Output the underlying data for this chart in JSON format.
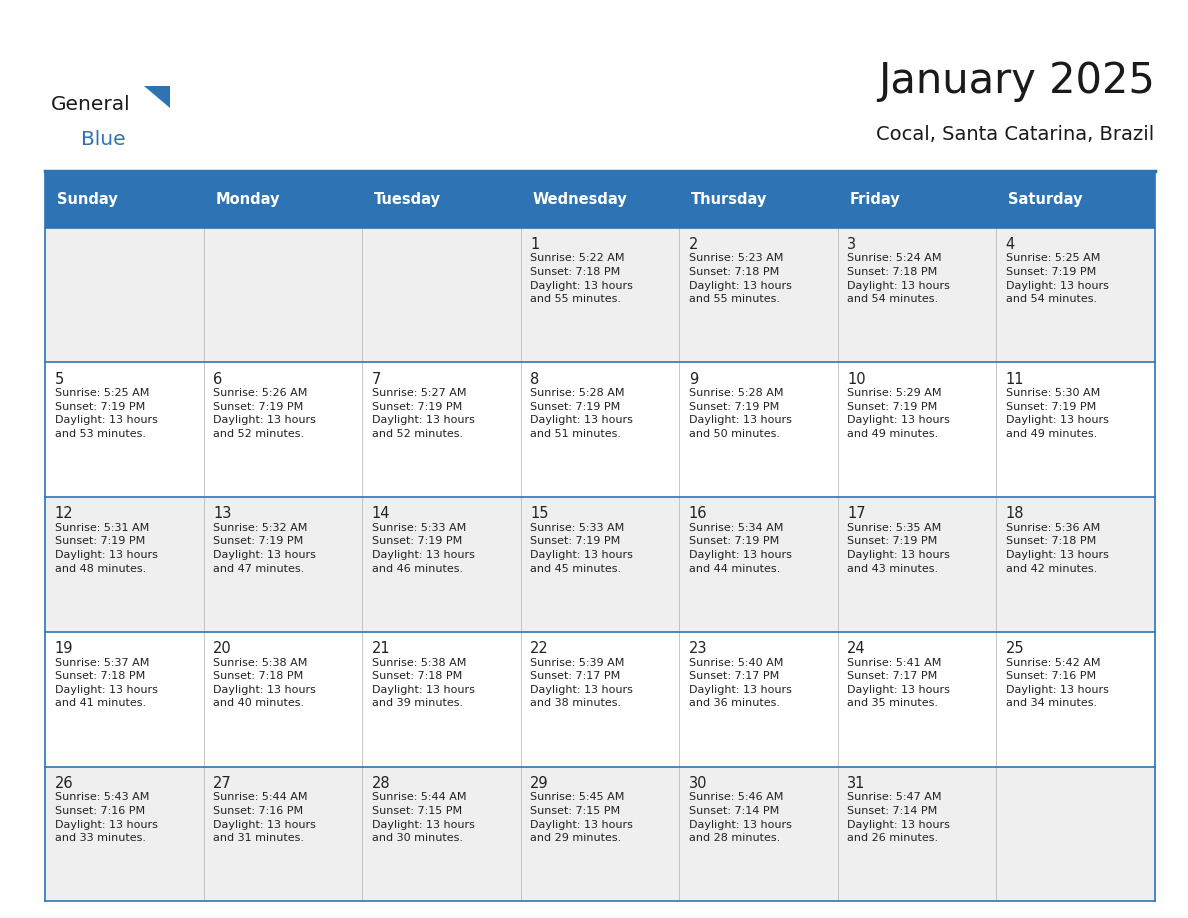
{
  "title": "January 2025",
  "subtitle": "Cocal, Santa Catarina, Brazil",
  "days_of_week": [
    "Sunday",
    "Monday",
    "Tuesday",
    "Wednesday",
    "Thursday",
    "Friday",
    "Saturday"
  ],
  "header_bg": "#2E74B5",
  "header_text_color": "#FFFFFF",
  "row_bg_even": "#EFEFEF",
  "row_bg_odd": "#FFFFFF",
  "cell_text_color": "#222222",
  "day_num_color": "#222222",
  "border_color": "#2E74B5",
  "grid_color": "#BBBBBB",
  "calendar_data": [
    [
      null,
      null,
      null,
      {
        "day": 1,
        "sunrise": "5:22 AM",
        "sunset": "7:18 PM",
        "daylight_hours": 13,
        "daylight_minutes": 55
      },
      {
        "day": 2,
        "sunrise": "5:23 AM",
        "sunset": "7:18 PM",
        "daylight_hours": 13,
        "daylight_minutes": 55
      },
      {
        "day": 3,
        "sunrise": "5:24 AM",
        "sunset": "7:18 PM",
        "daylight_hours": 13,
        "daylight_minutes": 54
      },
      {
        "day": 4,
        "sunrise": "5:25 AM",
        "sunset": "7:19 PM",
        "daylight_hours": 13,
        "daylight_minutes": 54
      }
    ],
    [
      {
        "day": 5,
        "sunrise": "5:25 AM",
        "sunset": "7:19 PM",
        "daylight_hours": 13,
        "daylight_minutes": 53
      },
      {
        "day": 6,
        "sunrise": "5:26 AM",
        "sunset": "7:19 PM",
        "daylight_hours": 13,
        "daylight_minutes": 52
      },
      {
        "day": 7,
        "sunrise": "5:27 AM",
        "sunset": "7:19 PM",
        "daylight_hours": 13,
        "daylight_minutes": 52
      },
      {
        "day": 8,
        "sunrise": "5:28 AM",
        "sunset": "7:19 PM",
        "daylight_hours": 13,
        "daylight_minutes": 51
      },
      {
        "day": 9,
        "sunrise": "5:28 AM",
        "sunset": "7:19 PM",
        "daylight_hours": 13,
        "daylight_minutes": 50
      },
      {
        "day": 10,
        "sunrise": "5:29 AM",
        "sunset": "7:19 PM",
        "daylight_hours": 13,
        "daylight_minutes": 49
      },
      {
        "day": 11,
        "sunrise": "5:30 AM",
        "sunset": "7:19 PM",
        "daylight_hours": 13,
        "daylight_minutes": 49
      }
    ],
    [
      {
        "day": 12,
        "sunrise": "5:31 AM",
        "sunset": "7:19 PM",
        "daylight_hours": 13,
        "daylight_minutes": 48
      },
      {
        "day": 13,
        "sunrise": "5:32 AM",
        "sunset": "7:19 PM",
        "daylight_hours": 13,
        "daylight_minutes": 47
      },
      {
        "day": 14,
        "sunrise": "5:33 AM",
        "sunset": "7:19 PM",
        "daylight_hours": 13,
        "daylight_minutes": 46
      },
      {
        "day": 15,
        "sunrise": "5:33 AM",
        "sunset": "7:19 PM",
        "daylight_hours": 13,
        "daylight_minutes": 45
      },
      {
        "day": 16,
        "sunrise": "5:34 AM",
        "sunset": "7:19 PM",
        "daylight_hours": 13,
        "daylight_minutes": 44
      },
      {
        "day": 17,
        "sunrise": "5:35 AM",
        "sunset": "7:19 PM",
        "daylight_hours": 13,
        "daylight_minutes": 43
      },
      {
        "day": 18,
        "sunrise": "5:36 AM",
        "sunset": "7:18 PM",
        "daylight_hours": 13,
        "daylight_minutes": 42
      }
    ],
    [
      {
        "day": 19,
        "sunrise": "5:37 AM",
        "sunset": "7:18 PM",
        "daylight_hours": 13,
        "daylight_minutes": 41
      },
      {
        "day": 20,
        "sunrise": "5:38 AM",
        "sunset": "7:18 PM",
        "daylight_hours": 13,
        "daylight_minutes": 40
      },
      {
        "day": 21,
        "sunrise": "5:38 AM",
        "sunset": "7:18 PM",
        "daylight_hours": 13,
        "daylight_minutes": 39
      },
      {
        "day": 22,
        "sunrise": "5:39 AM",
        "sunset": "7:17 PM",
        "daylight_hours": 13,
        "daylight_minutes": 38
      },
      {
        "day": 23,
        "sunrise": "5:40 AM",
        "sunset": "7:17 PM",
        "daylight_hours": 13,
        "daylight_minutes": 36
      },
      {
        "day": 24,
        "sunrise": "5:41 AM",
        "sunset": "7:17 PM",
        "daylight_hours": 13,
        "daylight_minutes": 35
      },
      {
        "day": 25,
        "sunrise": "5:42 AM",
        "sunset": "7:16 PM",
        "daylight_hours": 13,
        "daylight_minutes": 34
      }
    ],
    [
      {
        "day": 26,
        "sunrise": "5:43 AM",
        "sunset": "7:16 PM",
        "daylight_hours": 13,
        "daylight_minutes": 33
      },
      {
        "day": 27,
        "sunrise": "5:44 AM",
        "sunset": "7:16 PM",
        "daylight_hours": 13,
        "daylight_minutes": 31
      },
      {
        "day": 28,
        "sunrise": "5:44 AM",
        "sunset": "7:15 PM",
        "daylight_hours": 13,
        "daylight_minutes": 30
      },
      {
        "day": 29,
        "sunrise": "5:45 AM",
        "sunset": "7:15 PM",
        "daylight_hours": 13,
        "daylight_minutes": 29
      },
      {
        "day": 30,
        "sunrise": "5:46 AM",
        "sunset": "7:14 PM",
        "daylight_hours": 13,
        "daylight_minutes": 28
      },
      {
        "day": 31,
        "sunrise": "5:47 AM",
        "sunset": "7:14 PM",
        "daylight_hours": 13,
        "daylight_minutes": 26
      },
      null
    ]
  ],
  "background_color": "#FFFFFF",
  "fig_width": 11.88,
  "fig_height": 9.18,
  "dpi": 100
}
